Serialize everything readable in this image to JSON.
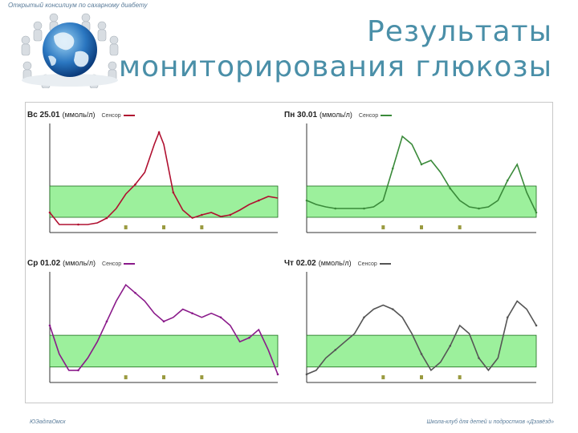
{
  "header": {
    "top_note": "Открытый консилиум по сахарному диабету",
    "title_line1": "Результаты",
    "title_line2": "мониторирования глюкозы"
  },
  "footer": {
    "left": "ЮЭадлаОмск",
    "right": "Школа-клуб для детей и подростков «Дэзвёзд»"
  },
  "colors": {
    "title": "#4a8fa8",
    "target_band": "#9cf09c",
    "curve_red": "#b01030",
    "curve_green": "#3a8a3a",
    "curve_purple": "#8a1a8a",
    "curve_gray": "#555555"
  },
  "chart_data": [
    {
      "type": "line",
      "day": "Вс 25.01",
      "unit": "(ммоль/л)",
      "legend": "Сенсор",
      "color": "#b01030",
      "x": [
        0,
        1,
        2,
        3,
        4,
        5,
        6,
        7,
        8,
        9,
        10,
        11,
        11.5,
        12,
        12.5,
        13,
        14,
        15,
        16,
        17,
        18,
        19,
        20,
        21,
        22,
        23,
        24
      ],
      "values": [
        4.5,
        3.0,
        3.0,
        3.0,
        3.0,
        3.2,
        3.8,
        5.0,
        6.8,
        8.0,
        9.5,
        13.0,
        14.5,
        13.0,
        10.0,
        7.0,
        4.8,
        3.8,
        4.2,
        4.5,
        4.0,
        4.2,
        4.8,
        5.5,
        6.0,
        6.5,
        6.3
      ],
      "ylim": [
        2,
        15
      ],
      "target": [
        3.9,
        7.8
      ]
    },
    {
      "type": "line",
      "day": "Пн 30.01",
      "unit": "(ммоль/л)",
      "legend": "Сенсор",
      "color": "#3a8a3a",
      "x": [
        0,
        1,
        2,
        3,
        4,
        5,
        6,
        7,
        8,
        9,
        10,
        11,
        12,
        13,
        14,
        15,
        16,
        17,
        18,
        19,
        20,
        21,
        22,
        23,
        24
      ],
      "values": [
        6.0,
        5.5,
        5.2,
        5.0,
        5.0,
        5.0,
        5.0,
        5.2,
        6.0,
        10.0,
        14.0,
        13.0,
        10.5,
        11.0,
        9.5,
        7.5,
        6.0,
        5.2,
        5.0,
        5.2,
        6.0,
        8.5,
        10.5,
        7.0,
        4.5
      ],
      "ylim": [
        2,
        15
      ],
      "target": [
        3.9,
        7.8
      ]
    },
    {
      "type": "line",
      "day": "Ср 01.02",
      "unit": "(ммоль/л)",
      "legend": "Сенсор",
      "color": "#8a1a8a",
      "x": [
        0,
        1,
        2,
        3,
        4,
        5,
        6,
        7,
        8,
        9,
        10,
        11,
        12,
        13,
        14,
        15,
        16,
        17,
        18,
        19,
        20,
        21,
        22,
        23,
        24
      ],
      "values": [
        9.0,
        5.5,
        3.5,
        3.5,
        5.0,
        7.0,
        9.5,
        12.0,
        14.0,
        13.0,
        12.0,
        10.5,
        9.5,
        10.0,
        11.0,
        10.5,
        10.0,
        10.5,
        10.0,
        9.0,
        7.0,
        7.5,
        8.5,
        6.0,
        3.0
      ],
      "ylim": [
        2,
        15
      ],
      "target": [
        3.9,
        7.8
      ]
    },
    {
      "type": "line",
      "day": "Чт 02.02",
      "unit": "(ммоль/л)",
      "legend": "Сенсор",
      "color": "#555555",
      "x": [
        0,
        1,
        2,
        3,
        4,
        5,
        6,
        7,
        8,
        9,
        10,
        11,
        12,
        13,
        14,
        15,
        16,
        17,
        18,
        19,
        20,
        21,
        22,
        23,
        24
      ],
      "values": [
        3.0,
        3.5,
        5.0,
        6.0,
        7.0,
        8.0,
        10.0,
        11.0,
        11.5,
        11.0,
        10.0,
        8.0,
        5.5,
        3.5,
        4.5,
        6.5,
        9.0,
        8.0,
        5.0,
        3.5,
        5.0,
        10.0,
        12.0,
        11.0,
        9.0
      ],
      "ylim": [
        2,
        15
      ],
      "target": [
        3.9,
        7.8
      ]
    }
  ]
}
